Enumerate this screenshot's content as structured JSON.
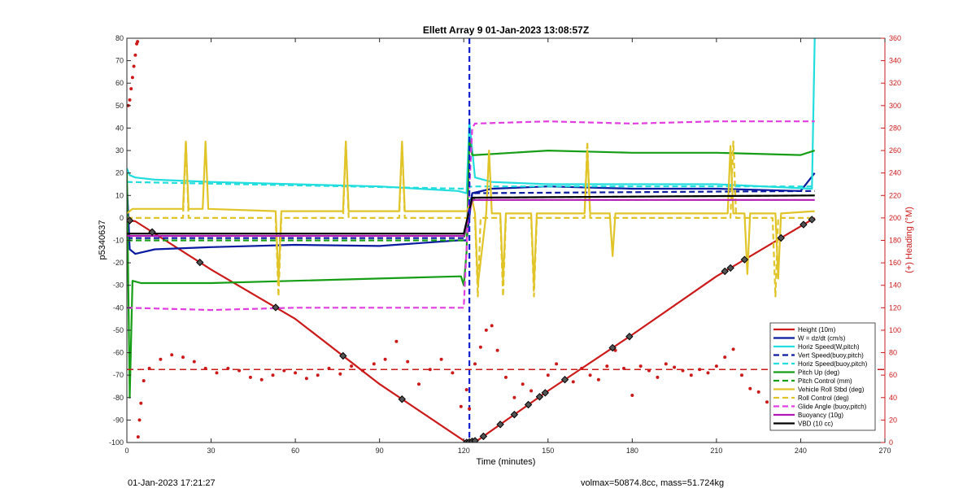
{
  "chart_data": {
    "type": "line",
    "title": "Ellett Array 9 01-Jan-2023 13:08:57Z",
    "xlabel": "Time (minutes)",
    "ylabel": "p5340637",
    "ylabel_right": "(+) Heading (°M)",
    "xlim": [
      0,
      270
    ],
    "ylim": [
      -100,
      80
    ],
    "ylim_right": [
      0,
      360
    ],
    "xticks": [
      0,
      30,
      60,
      90,
      120,
      150,
      180,
      210,
      240,
      270
    ],
    "yticks": [
      -100,
      -90,
      -80,
      -70,
      -60,
      -50,
      -40,
      -30,
      -20,
      -10,
      0,
      10,
      20,
      30,
      40,
      50,
      60,
      70,
      80
    ],
    "yticks_right": [
      0,
      20,
      40,
      60,
      80,
      100,
      120,
      140,
      160,
      180,
      200,
      220,
      240,
      260,
      280,
      300,
      320,
      340,
      360
    ],
    "grid": false,
    "legend_position": "bottom-right",
    "apogee_time": 122,
    "mean_heading": 65,
    "series": [
      {
        "name": "Height (10m)",
        "color": "#cc1a1a",
        "style": "solid",
        "x": [
          0,
          3,
          30,
          60,
          90,
          121,
          125,
          150,
          180,
          210,
          245
        ],
        "y": [
          -1,
          -1.5,
          -23,
          -45,
          -74,
          -100,
          -99,
          -77,
          -52,
          -26,
          0
        ]
      },
      {
        "name": "W = dz/dt (cm/s)",
        "color": "#0a1aa0",
        "style": "solid",
        "x": [
          0,
          1,
          3,
          10,
          30,
          60,
          90,
          118,
          121,
          123,
          130,
          150,
          180,
          210,
          240,
          245
        ],
        "y": [
          15,
          -14,
          -16,
          -14,
          -13,
          -12,
          -12.5,
          -10,
          -10,
          11,
          13,
          14,
          13,
          13,
          12,
          20
        ]
      },
      {
        "name": "Horiz Speed(W,pitch)",
        "color": "#22dddd",
        "style": "solid",
        "x": [
          0,
          1,
          3,
          10,
          30,
          60,
          90,
          118,
          121,
          122,
          124,
          130,
          150,
          180,
          210,
          244,
          245
        ],
        "y": [
          22,
          19,
          18,
          17,
          16,
          15,
          14,
          12,
          11,
          43,
          18,
          16,
          15,
          15,
          15,
          13,
          80
        ]
      },
      {
        "name": "Vert Speed(buoy,pitch)",
        "color": "#0a1aa0",
        "style": "dashed",
        "x": [
          0,
          120,
          123,
          245
        ],
        "y": [
          -9,
          -9,
          11,
          12
        ]
      },
      {
        "name": "Horiz Speed(buoy,pitch)",
        "color": "#22dddd",
        "style": "dashed",
        "x": [
          0,
          120,
          123,
          245
        ],
        "y": [
          16,
          13,
          14,
          14
        ]
      },
      {
        "name": "Pitch Up (deg)",
        "color": "#169e16",
        "style": "solid",
        "x": [
          0,
          1,
          2,
          5,
          30,
          60,
          90,
          119,
          120,
          121,
          122,
          123,
          124,
          150,
          180,
          210,
          240,
          245
        ],
        "y": [
          20,
          -80,
          -28,
          -29,
          -29,
          -28,
          -27,
          -26,
          -30,
          -15,
          35,
          28,
          28,
          30,
          29,
          29,
          28,
          30
        ]
      },
      {
        "name": "Pitch Control (mm)",
        "color": "#169e16",
        "style": "dashed",
        "x": [
          0,
          120,
          122,
          124,
          245
        ],
        "y": [
          -10,
          -10,
          5,
          9,
          10
        ]
      },
      {
        "name": "Vehicle Roll Stbd (deg)",
        "color": "#e0c428",
        "style": "solid",
        "x": [
          0,
          2,
          5,
          20,
          21,
          22,
          27,
          28,
          29,
          53,
          54,
          55,
          77,
          78,
          79,
          97,
          98,
          99,
          120,
          121,
          123,
          124,
          125,
          128,
          129,
          130,
          133,
          134,
          135,
          144,
          145,
          146,
          163,
          164,
          165,
          172,
          173,
          174,
          214,
          215,
          216,
          220,
          221,
          222,
          231,
          232,
          233,
          245
        ],
        "y": [
          2,
          4,
          4,
          4,
          34,
          4,
          4,
          34,
          4,
          3,
          -28,
          3,
          3,
          34,
          3,
          3,
          34,
          3,
          3,
          3,
          8,
          2,
          -30,
          2,
          30,
          2,
          2,
          -28,
          2,
          2,
          -30,
          2,
          2,
          30,
          2,
          2,
          -17,
          2,
          2,
          32,
          2,
          2,
          -25,
          2,
          2,
          -27,
          2,
          3
        ]
      },
      {
        "name": "Roll Control (deg)",
        "color": "#e0c428",
        "style": "dashed",
        "x": [
          0,
          5,
          20,
          21,
          22,
          53,
          54,
          55,
          77,
          78,
          79,
          97,
          98,
          99,
          120,
          123,
          124,
          125,
          126,
          133,
          134,
          135,
          144,
          145,
          146,
          163,
          164,
          165,
          215,
          216,
          217,
          230,
          231,
          232,
          245
        ],
        "y": [
          0,
          0,
          0,
          34,
          0,
          0,
          -35,
          0,
          0,
          34,
          0,
          0,
          34,
          0,
          0,
          0,
          0,
          -35,
          0,
          0,
          -35,
          0,
          0,
          -35,
          0,
          0,
          34,
          0,
          0,
          34,
          0,
          0,
          -35,
          0,
          0
        ]
      },
      {
        "name": "Glide Angle (buoy,pitch)",
        "color": "#e23ce2",
        "style": "dashed",
        "x": [
          0,
          30,
          60,
          90,
          120,
          123,
          124,
          150,
          180,
          210,
          245
        ],
        "y": [
          -40,
          -41,
          -40,
          -40,
          -40,
          40,
          42,
          43,
          42,
          43,
          43
        ]
      },
      {
        "name": "Buoyancy (10g)",
        "color": "#b418b4",
        "style": "solid",
        "x": [
          0,
          120,
          123,
          245
        ],
        "y": [
          -8,
          -8,
          8,
          8
        ]
      },
      {
        "name": "VBD (10 cc)",
        "color": "#000000",
        "style": "solid",
        "x": [
          0,
          1,
          3,
          120,
          123,
          245
        ],
        "y": [
          -7,
          -7,
          -7,
          -7,
          9,
          10
        ]
      }
    ],
    "heading_series": {
      "color": "#cc1a1a",
      "style": "dotted",
      "axis": "right",
      "x": [
        0.5,
        1,
        1.5,
        2,
        2.5,
        3,
        3.5,
        3.8,
        4,
        4.5,
        5,
        6,
        8,
        12,
        16,
        20,
        24,
        28,
        32,
        36,
        40,
        44,
        48,
        52,
        56,
        60,
        64,
        68,
        72,
        76,
        80,
        84,
        88,
        92,
        96,
        100,
        104,
        108,
        112,
        116,
        119,
        121,
        122,
        124,
        126,
        128,
        130,
        132,
        135,
        138,
        141,
        144,
        147,
        150,
        153,
        156,
        159,
        162,
        165,
        168,
        171,
        174,
        177,
        180,
        183,
        186,
        189,
        192,
        195,
        198,
        201,
        204,
        207,
        210,
        213,
        216,
        219,
        222,
        225,
        228,
        231,
        234,
        237,
        240,
        243
      ],
      "y": [
        300,
        305,
        315,
        325,
        335,
        345,
        355,
        357,
        5,
        20,
        35,
        55,
        66,
        74,
        78,
        76,
        72,
        66,
        62,
        66,
        64,
        58,
        56,
        60,
        64,
        62,
        57,
        60,
        66,
        61,
        68,
        64,
        70,
        74,
        90,
        72,
        52,
        65,
        74,
        62,
        32,
        47,
        30,
        70,
        85,
        100,
        104,
        82,
        58,
        40,
        52,
        46,
        40,
        60,
        70,
        55,
        54,
        66,
        60,
        56,
        68,
        82,
        66,
        42,
        68,
        64,
        58,
        70,
        67,
        64,
        60,
        65,
        62,
        68,
        76,
        83,
        60,
        48,
        45,
        36,
        40,
        44,
        50,
        48,
        52
      ]
    },
    "height_markers": [
      1,
      9,
      26,
      53,
      77,
      98,
      121,
      122,
      123,
      124,
      127,
      133,
      138,
      143,
      147,
      149,
      156,
      173,
      179,
      213,
      215,
      220,
      233,
      241,
      244
    ],
    "legend_entries": [
      "Height (10m)",
      "W = dz/dt (cm/s)",
      "Horiz Speed(W,pitch)",
      "Vert Speed(buoy,pitch)",
      "Horiz Speed(buoy,pitch)",
      "Pitch Up (deg)",
      "Pitch Control (mm)",
      "Vehicle Roll Stbd (deg)",
      "Roll Control (deg)",
      "Glide Angle (buoy,pitch)",
      "Buoyancy (10g)",
      "VBD (10 cc)"
    ],
    "legend_display": [
      "Height (10m)",
      "W = dz/dt (cm/s)",
      "Horiz Speed(W,pitch)",
      "Vert Speed(buoy,pitch)",
      "Horiz Speed(buoy,pitch)",
      "Pitch Up (deg)",
      "Pitch Control (mm)",
      "Vehicle Roll Stbd (deg)",
      "Roll Control (deg)",
      "Glide Angle (buoy,pitch)",
      "Buoyancy (10g)",
      "VBD (10 cc)"
    ]
  },
  "footer": {
    "left_text": "01-Jan-2023 17:21:27",
    "right_text": "volmax=50874.8cc, mass=51.724kg"
  }
}
